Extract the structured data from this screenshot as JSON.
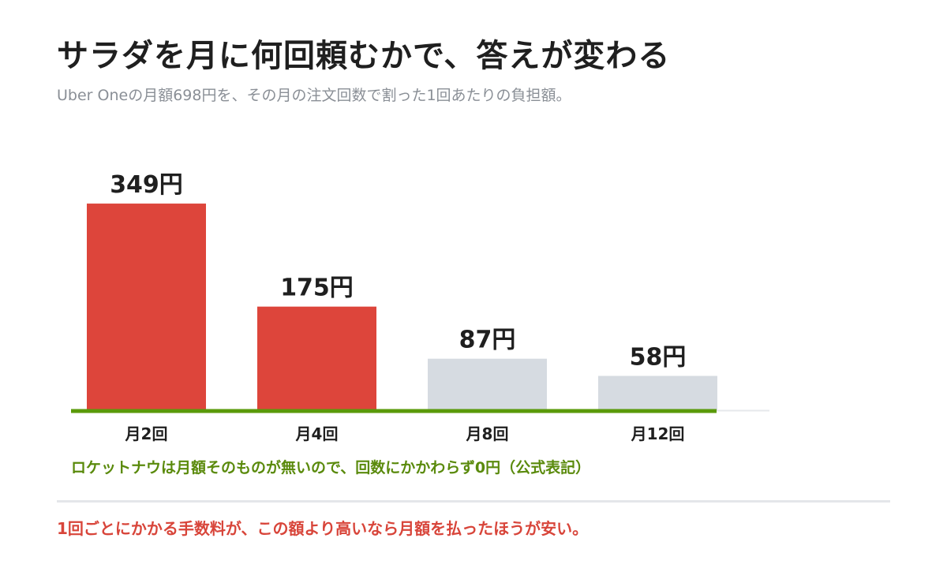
{
  "title": "サラダを月に何回頼むかで、答えが変わる",
  "subtitle": "Uber Oneの月額698円を、その月の注文回数で割った1回あたりの負担額。",
  "chart_data": {
    "type": "bar",
    "categories": [
      "月2回",
      "月4回",
      "月8回",
      "月12回"
    ],
    "values": [
      349,
      175,
      87,
      58
    ],
    "value_labels": [
      "349円",
      "175円",
      "87円",
      "58円"
    ],
    "unit": "円",
    "ylim": [
      0,
      400
    ],
    "grid": false,
    "colors": {
      "highlight": "#dd453b",
      "muted": "#d6dbe1",
      "baseline": "#5a9a0a",
      "axis": "#e6e8eb"
    },
    "highlighted": [
      true,
      true,
      false,
      false
    ]
  },
  "notes": {
    "rocket_now": "ロケットナウは月額そのものが無いので、回数にかかわらず0円（公式表記）",
    "conclusion": "1回ごとにかかる手数料が、この額より高いなら月額を払ったほうが安い。"
  }
}
